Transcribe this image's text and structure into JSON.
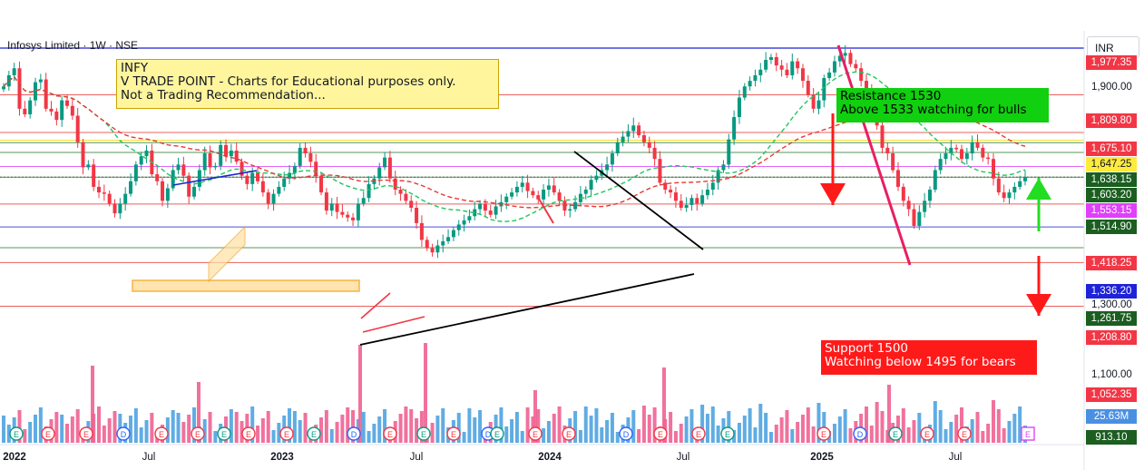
{
  "header": {
    "title": "Infosys Limited · 1W · NSE",
    "currency": "INR"
  },
  "notes": {
    "info": [
      "INFY",
      "V TRADE POINT - Charts for Educational purposes only.",
      "Not a Trading Recommendation..."
    ],
    "resistance": [
      "Resistance 1530",
      "Above 1533 watching for bulls"
    ],
    "support": [
      "Support 1500",
      "Watching below 1495 for bears"
    ]
  },
  "price_axis": {
    "ticks": [
      {
        "label": "1,900.00",
        "value": 1900
      },
      {
        "label": "1,300.00",
        "value": 1300
      },
      {
        "label": "1,100.00",
        "value": 1100
      }
    ],
    "chips": [
      {
        "label": "1,977.35",
        "value": 1977.35,
        "color": "#f23645",
        "text": "#ffffff"
      },
      {
        "label": "1,809.80",
        "value": 1809.8,
        "color": "#f23645",
        "text": "#ffffff"
      },
      {
        "label": "1,675.10",
        "value": 1675.1,
        "color": "#f23645",
        "text": "#ffffff"
      },
      {
        "label": "1,647.25",
        "value": 1647.25,
        "color": "#ffeb3b",
        "text": "#131722"
      },
      {
        "label": "1,638.15",
        "value": 1638.15,
        "color": "#1b5e20",
        "text": "#ffffff"
      },
      {
        "label": "1,603.20",
        "value": 1603.2,
        "color": "#1b5e20",
        "text": "#ffffff"
      },
      {
        "label": "1,553.15",
        "value": 1553.15,
        "color": "#e040fb",
        "text": "#ffffff"
      },
      {
        "label": "1,514.90",
        "value": 1514.9,
        "color": "#1b5e20",
        "text": "#ffffff"
      },
      {
        "label": "1,418.25",
        "value": 1418.25,
        "color": "#f23645",
        "text": "#ffffff"
      },
      {
        "label": "1,336.20",
        "value": 1336.2,
        "color": "#1e22d8",
        "text": "#ffffff"
      },
      {
        "label": "1,261.75",
        "value": 1261.75,
        "color": "#1b5e20",
        "text": "#ffffff"
      },
      {
        "label": "1,208.80",
        "value": 1208.8,
        "color": "#f23645",
        "text": "#ffffff"
      },
      {
        "label": "1,052.35",
        "value": 1052.35,
        "color": "#f23645",
        "text": "#ffffff"
      },
      {
        "label": "25.63M",
        "value": 972,
        "color": "#4a90e2",
        "text": "#ffffff"
      },
      {
        "label": "913.10",
        "value": 913.1,
        "color": "#1b5e20",
        "text": "#ffffff"
      }
    ]
  },
  "time_axis": [
    {
      "label": "2022",
      "year": true
    },
    {
      "label": "Jul",
      "year": false
    },
    {
      "label": "2023",
      "year": true
    },
    {
      "label": "Jul",
      "year": false
    },
    {
      "label": "2024",
      "year": true
    },
    {
      "label": "Jul",
      "year": false
    },
    {
      "label": "2025",
      "year": true
    },
    {
      "label": "Jul",
      "year": false
    }
  ],
  "event_markers": [
    "E",
    "E",
    "E",
    "D",
    "E",
    "E",
    "E",
    "E",
    "E",
    "E",
    "D",
    "E",
    "E",
    "E",
    "D",
    "E",
    "E",
    "E",
    "D",
    "E",
    "E",
    "E",
    "E",
    "D",
    "E",
    "E",
    "E"
  ],
  "colors": {
    "up": "#089981",
    "down": "#f23645",
    "vol_up": "#4fa3e0",
    "vol_down": "#f06292"
  },
  "chart_data": {
    "type": "candlestick",
    "title": "Infosys Limited · 1W · NSE",
    "x_range": [
      "2022-01",
      "2025-10"
    ],
    "ylim": [
      913.1,
      2000
    ],
    "key_price_levels": [
      1977.35,
      1809.8,
      1675.1,
      1647.25,
      1638.15,
      1603.2,
      1553.15,
      1514.9,
      1418.25,
      1336.2,
      1261.75,
      1208.8,
      1052.35
    ],
    "last_price": 1514.9,
    "last_volume": "25.63M",
    "ohlc_path_weekly_close": [
      1840,
      1880,
      1905,
      1760,
      1740,
      1790,
      1855,
      1865,
      1760,
      1750,
      1720,
      1790,
      1770,
      1735,
      1640,
      1550,
      1560,
      1480,
      1460,
      1455,
      1420,
      1385,
      1420,
      1455,
      1500,
      1560,
      1590,
      1610,
      1525,
      1500,
      1430,
      1475,
      1540,
      1560,
      1520,
      1445,
      1480,
      1540,
      1600,
      1550,
      1555,
      1630,
      1590,
      1610,
      1570,
      1520,
      1490,
      1530,
      1500,
      1460,
      1420,
      1455,
      1480,
      1510,
      1530,
      1555,
      1620,
      1600,
      1570,
      1520,
      1460,
      1395,
      1420,
      1390,
      1380,
      1370,
      1360,
      1420,
      1440,
      1490,
      1510,
      1550,
      1585,
      1510,
      1470,
      1455,
      1430,
      1405,
      1350,
      1290,
      1260,
      1245,
      1270,
      1285,
      1300,
      1325,
      1345,
      1360,
      1375,
      1400,
      1420,
      1395,
      1380,
      1410,
      1425,
      1445,
      1460,
      1480,
      1495,
      1465,
      1450,
      1435,
      1470,
      1485,
      1460,
      1430,
      1395,
      1400,
      1425,
      1455,
      1470,
      1505,
      1520,
      1540,
      1560,
      1600,
      1640,
      1660,
      1680,
      1700,
      1665,
      1640,
      1620,
      1580,
      1495,
      1470,
      1460,
      1430,
      1405,
      1415,
      1440,
      1420,
      1450,
      1470,
      1495,
      1540,
      1560,
      1650,
      1730,
      1800,
      1840,
      1860,
      1880,
      1900,
      1935,
      1945,
      1915,
      1900,
      1880,
      1930,
      1905,
      1860,
      1810,
      1760,
      1790,
      1870,
      1890,
      1930,
      1950,
      1960,
      1920,
      1905,
      1860,
      1820,
      1780,
      1700,
      1620,
      1600,
      1540,
      1480,
      1430,
      1400,
      1340,
      1390,
      1430,
      1470,
      1540,
      1580,
      1600,
      1620,
      1615,
      1580,
      1600,
      1640,
      1620,
      1585,
      1580,
      1510,
      1460,
      1440,
      1460,
      1480,
      1500,
      1515
    ]
  }
}
